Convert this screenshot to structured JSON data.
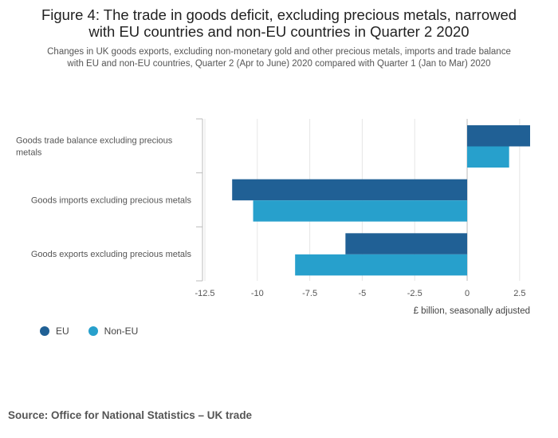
{
  "title_lines": [
    "Figure 4: The trade in goods deficit, excluding precious metals, narrowed",
    "with EU countries and non-EU countries in Quarter 2 2020"
  ],
  "subtitle_lines": [
    "Changes in UK goods exports, excluding non-monetary gold and other precious metals, imports and trade balance",
    "with EU and non-EU countries, Quarter 2 (Apr to June) 2020 compared with Quarter 1 (Jan to Mar) 2020"
  ],
  "source": "Source: Office for National Statistics – UK trade",
  "colors": {
    "eu": "#206095",
    "non_eu": "#27a0cc",
    "grid": "#e6e6e6",
    "axis": "#bbbbbb",
    "text": "#555555"
  },
  "chart_data": {
    "type": "bar",
    "orientation": "horizontal",
    "categories": [
      "Goods trade balance excluding precious metals",
      "Goods imports excluding precious metals",
      "Goods exports excluding precious metals"
    ],
    "series": [
      {
        "name": "EU",
        "values": [
          3.0,
          -11.2,
          -5.8
        ]
      },
      {
        "name": "Non-EU",
        "values": [
          2.0,
          -10.2,
          -8.2
        ]
      }
    ],
    "xlim": [
      -12.5,
      3.0
    ],
    "xticks": [
      -12.5,
      -10,
      -7.5,
      -5,
      -2.5,
      0,
      2.5
    ],
    "xtick_labels": [
      "-12.5",
      "-10",
      "-7.5",
      "-5",
      "-2.5",
      "0",
      "2.5"
    ],
    "xlabel": "£ billion, seasonally adjusted",
    "grid": true,
    "legend_position": "bottom-left"
  }
}
